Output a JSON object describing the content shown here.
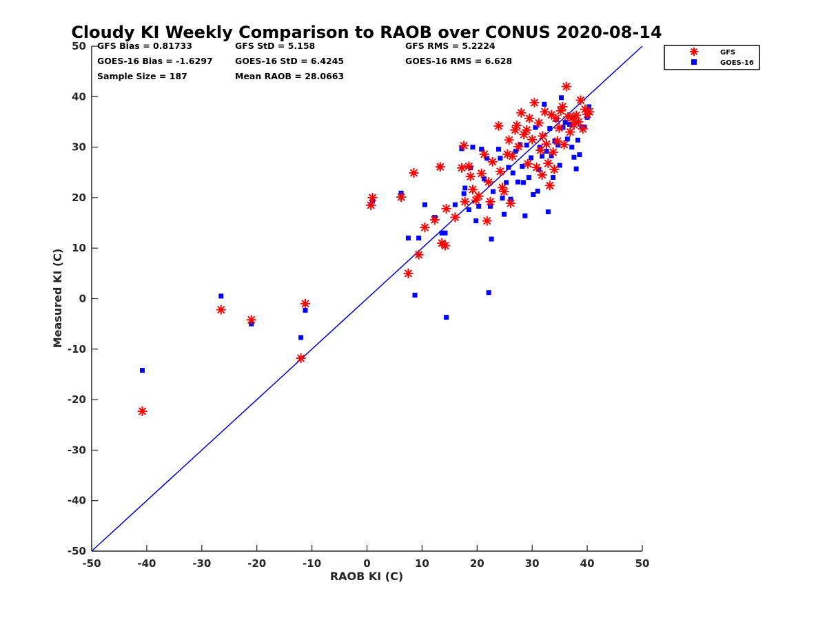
{
  "chart_data": {
    "type": "scatter",
    "title": "Cloudy KI Weekly Comparison to RAOB over CONUS 2020-08-14",
    "xlabel": "RAOB KI (C)",
    "ylabel": "Measured KI (C)",
    "xlim": [
      -50,
      50
    ],
    "ylim": [
      -50,
      50
    ],
    "xticks": [
      -50,
      -40,
      -30,
      -20,
      -10,
      0,
      10,
      20,
      30,
      40,
      50
    ],
    "yticks": [
      -50,
      -40,
      -30,
      -20,
      -10,
      0,
      10,
      20,
      30,
      40,
      50
    ],
    "grid": false,
    "legend_position": "top-right outside",
    "stats": [
      [
        "GFS Bias = 0.81733",
        "GFS StD = 5.158",
        "GFS RMS = 5.2224"
      ],
      [
        "GOES-16 Bias = -1.6297",
        "GOES-16 StD = 6.4245",
        "GOES-16 RMS = 6.628"
      ],
      [
        "Sample Size = 187",
        "Mean RAOB = 28.0663",
        ""
      ]
    ],
    "reference_line": {
      "x": [
        -50,
        50
      ],
      "y": [
        -50,
        50
      ],
      "color": "#0000cc"
    },
    "series": [
      {
        "name": "GFS",
        "marker": "asterisk",
        "color": "#ff0000",
        "points": [
          [
            -40.8,
            -22.3
          ],
          [
            -26.5,
            -2.2
          ],
          [
            -21.0,
            -4.2
          ],
          [
            -12.0,
            -11.8
          ],
          [
            -11.2,
            -1.0
          ],
          [
            0.7,
            18.5
          ],
          [
            1.0,
            20.0
          ],
          [
            6.2,
            20.1
          ],
          [
            7.5,
            5.0
          ],
          [
            8.5,
            24.9
          ],
          [
            9.4,
            8.7
          ],
          [
            10.5,
            14.1
          ],
          [
            12.3,
            15.6
          ],
          [
            13.3,
            26.1
          ],
          [
            13.6,
            11.0
          ],
          [
            14.2,
            10.5
          ],
          [
            14.4,
            17.8
          ],
          [
            16.0,
            16.1
          ],
          [
            17.2,
            25.9
          ],
          [
            17.6,
            30.3
          ],
          [
            17.8,
            19.2
          ],
          [
            18.5,
            26.2
          ],
          [
            18.8,
            24.2
          ],
          [
            19.2,
            21.6
          ],
          [
            19.8,
            19.5
          ],
          [
            20.3,
            20.3
          ],
          [
            20.8,
            24.8
          ],
          [
            21.3,
            28.6
          ],
          [
            21.8,
            15.4
          ],
          [
            22.1,
            23.1
          ],
          [
            22.4,
            19.2
          ],
          [
            22.8,
            27.1
          ],
          [
            23.9,
            34.2
          ],
          [
            24.2,
            25.2
          ],
          [
            24.6,
            22.0
          ],
          [
            24.9,
            21.2
          ],
          [
            25.5,
            28.6
          ],
          [
            25.8,
            31.4
          ],
          [
            26.1,
            18.9
          ],
          [
            26.4,
            28.2
          ],
          [
            26.9,
            33.4
          ],
          [
            27.2,
            34.3
          ],
          [
            27.5,
            30.1
          ],
          [
            28.0,
            36.8
          ],
          [
            28.5,
            32.5
          ],
          [
            29.0,
            33.4
          ],
          [
            29.5,
            35.7
          ],
          [
            30.0,
            31.5
          ],
          [
            30.4,
            38.8
          ],
          [
            30.8,
            26.0
          ],
          [
            31.2,
            34.8
          ],
          [
            31.5,
            29.4
          ],
          [
            31.9,
            32.2
          ],
          [
            32.3,
            37.0
          ],
          [
            32.6,
            30.6
          ],
          [
            32.9,
            26.8
          ],
          [
            33.2,
            22.4
          ],
          [
            33.5,
            36.4
          ],
          [
            33.8,
            29.0
          ],
          [
            34.0,
            25.6
          ],
          [
            34.3,
            35.7
          ],
          [
            34.6,
            31.2
          ],
          [
            34.9,
            33.8
          ],
          [
            35.2,
            37.2
          ],
          [
            35.5,
            38.0
          ],
          [
            35.8,
            30.5
          ],
          [
            36.2,
            42.0
          ],
          [
            36.5,
            36.0
          ],
          [
            36.9,
            33.0
          ],
          [
            37.3,
            35.8
          ],
          [
            37.6,
            34.4
          ],
          [
            38.0,
            36.3
          ],
          [
            38.4,
            35.0
          ],
          [
            38.8,
            39.3
          ],
          [
            39.2,
            33.6
          ],
          [
            39.6,
            37.5
          ],
          [
            40.0,
            36.5
          ],
          [
            40.4,
            37.0
          ],
          [
            29.2,
            26.7
          ],
          [
            31.8,
            24.5
          ]
        ]
      },
      {
        "name": "GOES-16",
        "marker": "square",
        "color": "#0000ff",
        "points": [
          [
            -40.8,
            -14.2
          ],
          [
            -26.5,
            0.5
          ],
          [
            -21.0,
            -5.0
          ],
          [
            -12.0,
            -7.7
          ],
          [
            -11.2,
            -2.3
          ],
          [
            0.7,
            18.6
          ],
          [
            1.0,
            19.3
          ],
          [
            6.2,
            20.9
          ],
          [
            7.5,
            12.0
          ],
          [
            8.7,
            0.7
          ],
          [
            9.4,
            12.0
          ],
          [
            10.5,
            18.6
          ],
          [
            12.3,
            16.1
          ],
          [
            13.3,
            26.1
          ],
          [
            13.6,
            13.0
          ],
          [
            14.2,
            13.0
          ],
          [
            14.4,
            -3.7
          ],
          [
            16.0,
            18.6
          ],
          [
            17.2,
            29.7
          ],
          [
            17.6,
            20.8
          ],
          [
            17.8,
            21.9
          ],
          [
            18.5,
            17.6
          ],
          [
            18.8,
            25.9
          ],
          [
            19.2,
            30.0
          ],
          [
            19.8,
            15.4
          ],
          [
            20.3,
            18.3
          ],
          [
            20.8,
            29.6
          ],
          [
            21.3,
            23.7
          ],
          [
            21.8,
            27.8
          ],
          [
            22.1,
            1.2
          ],
          [
            22.4,
            18.3
          ],
          [
            22.6,
            11.8
          ],
          [
            22.9,
            21.2
          ],
          [
            23.9,
            29.6
          ],
          [
            24.2,
            27.8
          ],
          [
            24.6,
            19.9
          ],
          [
            24.9,
            16.7
          ],
          [
            25.3,
            23.0
          ],
          [
            25.7,
            26.0
          ],
          [
            26.1,
            19.7
          ],
          [
            26.5,
            24.9
          ],
          [
            27.0,
            29.2
          ],
          [
            27.4,
            23.1
          ],
          [
            27.8,
            30.5
          ],
          [
            28.2,
            26.2
          ],
          [
            28.7,
            16.4
          ],
          [
            29.0,
            30.4
          ],
          [
            29.4,
            24.0
          ],
          [
            29.8,
            27.9
          ],
          [
            30.2,
            20.6
          ],
          [
            30.6,
            33.9
          ],
          [
            31.0,
            21.3
          ],
          [
            31.4,
            30.0
          ],
          [
            31.8,
            28.2
          ],
          [
            32.2,
            38.5
          ],
          [
            32.6,
            29.2
          ],
          [
            32.9,
            17.2
          ],
          [
            33.2,
            33.7
          ],
          [
            33.5,
            28.3
          ],
          [
            33.8,
            24.0
          ],
          [
            34.1,
            31.2
          ],
          [
            34.4,
            35.5
          ],
          [
            34.7,
            30.4
          ],
          [
            35.0,
            26.4
          ],
          [
            35.3,
            39.8
          ],
          [
            35.6,
            33.9
          ],
          [
            36.0,
            34.9
          ],
          [
            36.4,
            31.6
          ],
          [
            36.8,
            34.5
          ],
          [
            37.2,
            30.0
          ],
          [
            37.6,
            28.0
          ],
          [
            38.0,
            25.7
          ],
          [
            38.3,
            31.4
          ],
          [
            38.6,
            28.5
          ],
          [
            39.0,
            34.0
          ],
          [
            39.5,
            34.0
          ],
          [
            40.0,
            35.9
          ],
          [
            40.3,
            38.0
          ],
          [
            31.2,
            25.6
          ],
          [
            28.4,
            23.0
          ]
        ]
      }
    ]
  }
}
